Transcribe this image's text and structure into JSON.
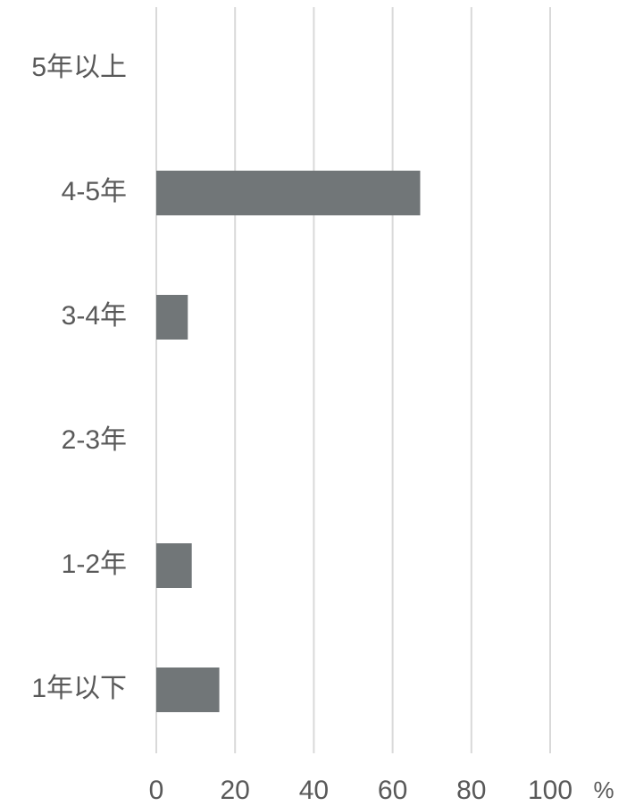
{
  "chart_data": {
    "type": "bar",
    "orientation": "horizontal",
    "categories": [
      "5年以上",
      "4-5年",
      "3-4年",
      "2-3年",
      "1-2年",
      "1年以下"
    ],
    "series": [
      {
        "values": [
          0,
          67,
          8,
          0,
          9,
          16
        ]
      }
    ],
    "xlim": [
      0,
      100
    ],
    "xticks": [
      "0",
      "20",
      "40",
      "60",
      "80",
      "100"
    ],
    "x_unit": "%",
    "grid": "vertical",
    "colors": {
      "bar": "#717678",
      "grid": "#d9d9d9",
      "text": "#595959"
    }
  }
}
